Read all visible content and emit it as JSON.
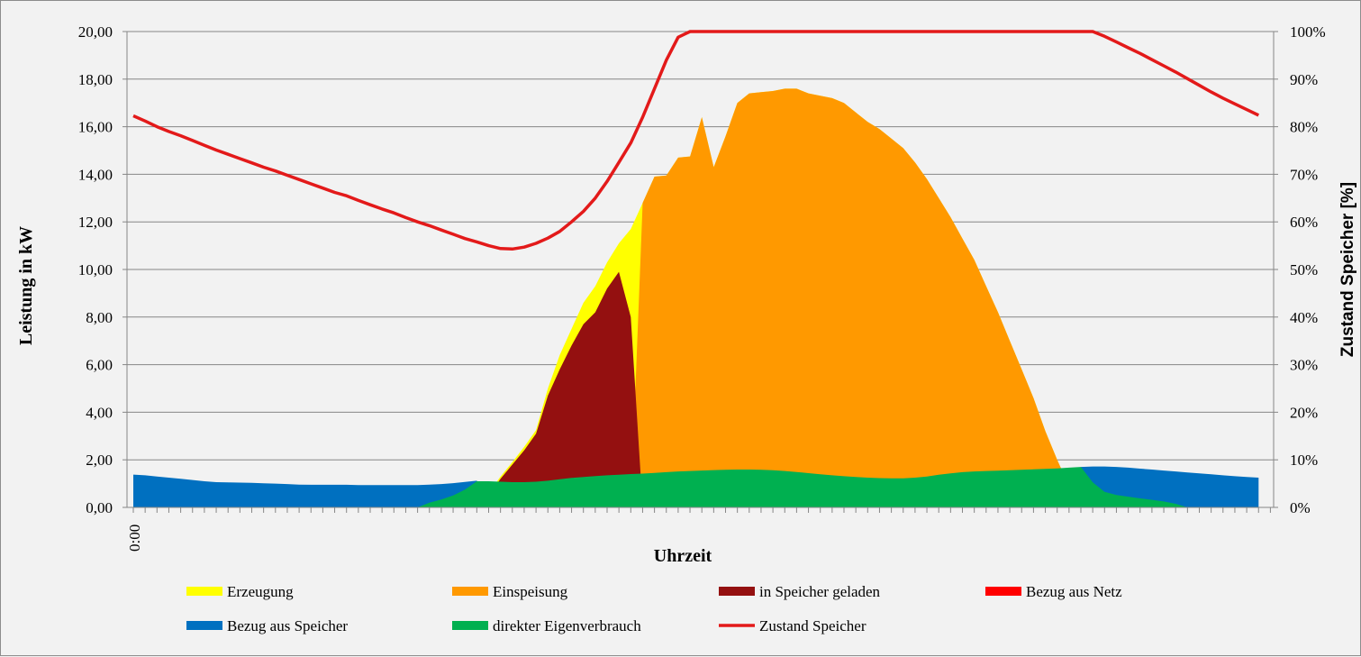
{
  "chart_data": {
    "type": "area",
    "xlabel": "Uhrzeit",
    "ylabel": "Leistung in kW",
    "y2label": "Zustand Speicher [%]",
    "ylim": [
      0,
      20
    ],
    "y2lim": [
      0,
      100
    ],
    "yticks": [
      "0,00",
      "2,00",
      "4,00",
      "6,00",
      "8,00",
      "10,00",
      "12,00",
      "14,00",
      "16,00",
      "18,00",
      "20,00"
    ],
    "y2ticks": [
      "0%",
      "10%",
      "20%",
      "30%",
      "40%",
      "50%",
      "60%",
      "70%",
      "80%",
      "90%",
      "100%"
    ],
    "x_first_label": "0:00",
    "x_hours": [
      0,
      0.25,
      0.5,
      0.75,
      1,
      1.25,
      1.5,
      1.75,
      2,
      2.25,
      2.5,
      2.75,
      3,
      3.25,
      3.5,
      3.75,
      4,
      4.25,
      4.5,
      4.75,
      5,
      5.25,
      5.5,
      5.75,
      6,
      6.25,
      6.5,
      6.75,
      7,
      7.25,
      7.5,
      7.75,
      8,
      8.25,
      8.5,
      8.75,
      9,
      9.25,
      9.5,
      9.75,
      10,
      10.25,
      10.5,
      10.75,
      11,
      11.25,
      11.5,
      11.75,
      12,
      12.25,
      12.5,
      12.75,
      13,
      13.25,
      13.5,
      13.75,
      14,
      14.25,
      14.5,
      14.75,
      15,
      15.25,
      15.5,
      15.75,
      16,
      16.25,
      16.5,
      16.75,
      17,
      17.25,
      17.5,
      17.75,
      18,
      18.25,
      18.5,
      18.75,
      19,
      19.25,
      19.5,
      19.75,
      20,
      20.25,
      20.5,
      20.75,
      21,
      21.25,
      21.5,
      21.75,
      22,
      22.25,
      22.5,
      22.75,
      23,
      23.25,
      23.5,
      23.75
    ],
    "grid": true,
    "legend_position": "bottom",
    "series": [
      {
        "name": "Erzeugung",
        "color": "#ffff00",
        "axis": "left",
        "values": [
          0,
          0,
          0,
          0,
          0,
          0,
          0,
          0,
          0,
          0,
          0,
          0,
          0,
          0,
          0,
          0,
          0,
          0,
          0,
          0,
          0,
          0,
          0,
          0,
          0,
          0,
          0,
          0,
          0,
          0.15,
          0.6,
          1.3,
          1.9,
          2.55,
          3.25,
          5.0,
          6.4,
          7.5,
          8.6,
          9.3,
          10.3,
          11.1,
          11.7,
          12.8,
          13.9,
          13.95,
          14.7,
          14.75,
          16.4,
          14.3,
          15.6,
          17.0,
          17.4,
          17.45,
          17.5,
          17.6,
          17.6,
          17.4,
          17.3,
          17.2,
          17.0,
          16.6,
          16.2,
          15.9,
          15.5,
          15.1,
          14.5,
          13.8,
          13.0,
          12.2,
          11.3,
          10.4,
          9.3,
          8.2,
          7.0,
          5.8,
          4.6,
          3.2,
          2.0,
          0.9,
          0,
          0,
          0,
          0,
          0,
          0,
          0,
          0,
          0,
          0,
          0,
          0,
          0,
          0,
          0,
          0
        ]
      },
      {
        "name": "Einspeisung",
        "color": "#ff9900",
        "axis": "left",
        "values": [
          0,
          0,
          0,
          0,
          0,
          0,
          0,
          0,
          0,
          0,
          0,
          0,
          0,
          0,
          0,
          0,
          0,
          0,
          0,
          0,
          0,
          0,
          0,
          0,
          0,
          0,
          0,
          0,
          0,
          0,
          0,
          0,
          0,
          0,
          0,
          0,
          0,
          0,
          0,
          0,
          0,
          0,
          0,
          12.8,
          13.9,
          13.95,
          14.7,
          14.75,
          16.4,
          14.3,
          15.6,
          17.0,
          17.4,
          17.45,
          17.5,
          17.6,
          17.6,
          17.4,
          17.3,
          17.2,
          17.0,
          16.6,
          16.2,
          15.9,
          15.5,
          15.1,
          14.5,
          13.8,
          13.0,
          12.2,
          11.3,
          10.4,
          9.3,
          8.2,
          7.0,
          5.8,
          4.6,
          3.2,
          2.0,
          0.9,
          0,
          0,
          0,
          0,
          0,
          0,
          0,
          0,
          0,
          0,
          0,
          0,
          0,
          0,
          0,
          0
        ]
      },
      {
        "name": "in Speicher geladen",
        "color": "#941010",
        "axis": "left",
        "values": [
          0,
          0,
          0,
          0,
          0,
          0,
          0,
          0,
          0,
          0,
          0,
          0,
          0,
          0,
          0,
          0,
          0,
          0,
          0,
          0,
          0,
          0,
          0,
          0,
          0,
          0,
          0,
          0,
          0,
          0.1,
          0.5,
          1.2,
          1.8,
          2.4,
          3.1,
          4.7,
          5.8,
          6.8,
          7.7,
          8.2,
          9.2,
          9.9,
          8.0,
          0,
          0,
          0,
          0,
          0,
          0,
          0,
          0,
          0,
          0,
          0,
          0,
          0,
          0,
          0,
          0,
          0,
          0,
          0,
          0,
          0,
          0,
          0,
          0,
          0,
          0,
          0,
          0,
          0,
          0,
          0,
          0,
          0,
          0,
          0,
          0,
          0,
          0,
          0,
          0,
          0,
          0,
          0,
          0,
          0,
          0,
          0,
          0,
          0,
          0,
          0,
          0,
          0
        ]
      },
      {
        "name": "Bezug aus Netz",
        "color": "#ff0000",
        "axis": "left",
        "values": [
          0,
          0,
          0,
          0,
          0,
          0,
          0,
          0,
          0,
          0,
          0,
          0,
          0,
          0,
          0,
          0,
          0,
          0,
          0,
          0,
          0,
          0,
          0,
          0,
          0,
          0,
          0,
          0,
          0,
          0,
          0,
          0,
          0,
          0,
          0,
          0,
          0,
          0,
          0,
          0,
          0,
          0,
          0,
          0,
          0,
          0,
          0,
          0,
          0,
          0,
          0,
          0,
          0,
          0,
          0,
          0,
          0,
          0,
          0,
          0,
          0,
          0,
          0,
          0,
          0,
          0,
          0,
          0,
          0,
          0,
          0,
          0,
          0,
          0,
          0,
          0,
          0,
          0,
          0,
          0,
          0,
          0,
          0,
          0,
          0,
          0,
          0,
          0,
          0,
          0,
          0,
          0,
          0,
          0,
          0,
          0
        ]
      },
      {
        "name": "Bezug aus Speicher",
        "color": "#0070c0",
        "axis": "left",
        "values": [
          1.38,
          1.35,
          1.3,
          1.25,
          1.2,
          1.15,
          1.1,
          1.06,
          1.05,
          1.04,
          1.03,
          1.01,
          1.0,
          0.98,
          0.96,
          0.95,
          0.95,
          0.95,
          0.95,
          0.94,
          0.94,
          0.94,
          0.94,
          0.94,
          0.94,
          0.96,
          0.98,
          1.02,
          1.07,
          1.12,
          0,
          0,
          0,
          0,
          0,
          0,
          0,
          0,
          0,
          0,
          0,
          0,
          0,
          0,
          0,
          0,
          0,
          0,
          0,
          0,
          0,
          0,
          0,
          0,
          0,
          0,
          0,
          0,
          0,
          0,
          0,
          0,
          0,
          0,
          0,
          0,
          0,
          0,
          0,
          0,
          0,
          0,
          0,
          0,
          0,
          0,
          0,
          0,
          0,
          0,
          1.7,
          1.72,
          1.72,
          1.7,
          1.67,
          1.63,
          1.59,
          1.55,
          1.51,
          1.47,
          1.43,
          1.39,
          1.35,
          1.31,
          1.28,
          1.25
        ]
      },
      {
        "name": "direkter Eigenverbrauch",
        "color": "#00b050",
        "axis": "left",
        "values": [
          0,
          0,
          0,
          0,
          0,
          0,
          0,
          0,
          0,
          0,
          0,
          0,
          0,
          0,
          0,
          0,
          0,
          0,
          0,
          0,
          0,
          0,
          0,
          0,
          0,
          0.2,
          0.33,
          0.5,
          0.75,
          1.1,
          1.1,
          1.08,
          1.06,
          1.06,
          1.08,
          1.12,
          1.18,
          1.24,
          1.28,
          1.32,
          1.35,
          1.37,
          1.4,
          1.42,
          1.45,
          1.48,
          1.51,
          1.53,
          1.55,
          1.57,
          1.58,
          1.59,
          1.59,
          1.58,
          1.56,
          1.53,
          1.49,
          1.44,
          1.39,
          1.35,
          1.31,
          1.28,
          1.25,
          1.23,
          1.22,
          1.22,
          1.25,
          1.3,
          1.37,
          1.43,
          1.48,
          1.51,
          1.53,
          1.54,
          1.56,
          1.58,
          1.6,
          1.62,
          1.64,
          1.67,
          1.7,
          1.05,
          0.65,
          0.52,
          0.45,
          0.38,
          0.32,
          0.25,
          0.15,
          0,
          0,
          0,
          0,
          0,
          0,
          0
        ]
      },
      {
        "name": "Zustand Speicher",
        "color": "#e31a1a",
        "axis": "right",
        "type": "line",
        "values": [
          82.3,
          81.2,
          80.0,
          79.0,
          78.1,
          77.1,
          76.1,
          75.1,
          74.2,
          73.3,
          72.4,
          71.5,
          70.7,
          69.8,
          68.9,
          68.0,
          67.1,
          66.2,
          65.5,
          64.5,
          63.6,
          62.7,
          61.9,
          60.9,
          60.0,
          59.2,
          58.3,
          57.4,
          56.5,
          55.8,
          55.0,
          54.4,
          54.3,
          54.7,
          55.5,
          56.6,
          58.0,
          60.0,
          62.2,
          65.0,
          68.5,
          72.5,
          76.6,
          82.0,
          88.0,
          94.0,
          98.8,
          100,
          100,
          100,
          100,
          100,
          100,
          100,
          100,
          100,
          100,
          100,
          100,
          100,
          100,
          100,
          100,
          100,
          100,
          100,
          100,
          100,
          100,
          100,
          100,
          100,
          100,
          100,
          100,
          100,
          100,
          100,
          100,
          100,
          100,
          100,
          99.0,
          97.8,
          96.6,
          95.4,
          94.1,
          92.8,
          91.5,
          90.1,
          88.7,
          87.3,
          86.0,
          84.8,
          83.6,
          82.4
        ]
      }
    ]
  }
}
